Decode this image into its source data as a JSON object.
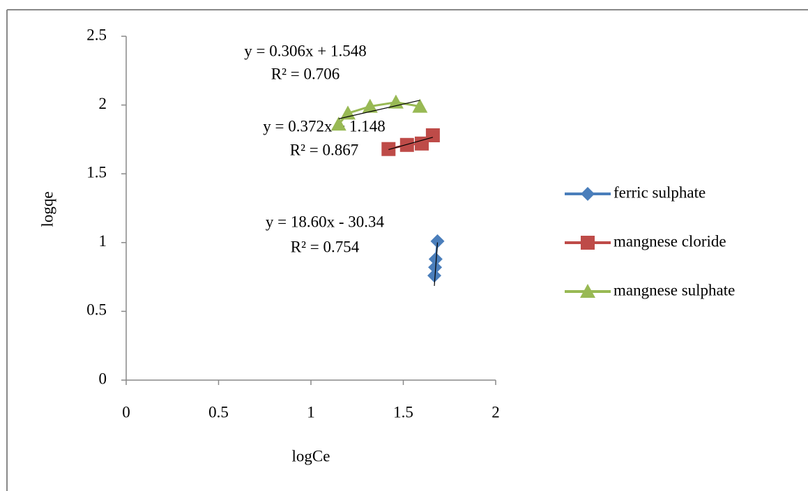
{
  "chart_data": {
    "type": "scatter",
    "x_label": "logCe",
    "y_label": "logqe",
    "xlim": [
      0,
      2
    ],
    "xticks": [
      0,
      0.5,
      1,
      1.5,
      2
    ],
    "ylim": [
      0,
      2.5
    ],
    "yticks": [
      0,
      0.5,
      1,
      1.5,
      2,
      2.5
    ],
    "legend": "right",
    "series": [
      {
        "name": "ferric sulphate",
        "color": "#4a7ebb",
        "marker": "diamond",
        "x": [
          1.685,
          1.675,
          1.672,
          1.668
        ],
        "values": [
          1.01,
          0.88,
          0.82,
          0.76
        ],
        "trendline": {
          "slope": 18.6,
          "intercept": -30.34,
          "label": "y = 18.60x - 30.34",
          "r2_label": "R² = 0.754"
        }
      },
      {
        "name": "mangnese cloride",
        "color": "#be4b48",
        "marker": "square",
        "x": [
          1.42,
          1.52,
          1.6,
          1.66
        ],
        "values": [
          1.68,
          1.71,
          1.72,
          1.78
        ],
        "trendline": {
          "slope": 0.372,
          "intercept": 1.148,
          "label": "y = 0.372x + 1.148",
          "r2_label": "R² = 0.867"
        }
      },
      {
        "name": "mangnese sulphate",
        "color": "#98b954",
        "marker": "triangle",
        "x": [
          1.15,
          1.2,
          1.32,
          1.46,
          1.59
        ],
        "values": [
          1.86,
          1.94,
          1.99,
          2.02,
          1.99
        ],
        "trendline": {
          "slope": 0.306,
          "intercept": 1.548,
          "label": "y = 0.306x + 1.548",
          "r2_label": "R² = 0.706"
        }
      }
    ]
  }
}
